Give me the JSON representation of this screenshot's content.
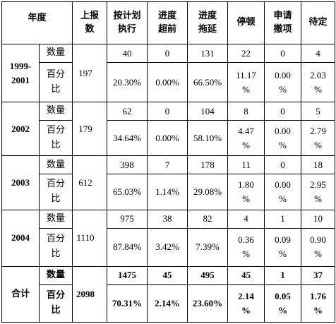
{
  "headers": {
    "year": "年度",
    "reported": [
      "上报",
      "数"
    ],
    "on_plan": [
      "按计划",
      "执行"
    ],
    "ahead": [
      "进度",
      "超前"
    ],
    "delayed": [
      "进度",
      "拖延"
    ],
    "stopped": "停顿",
    "applied": [
      "申请",
      "撤项"
    ],
    "pending": "待定"
  },
  "labels": {
    "count": "数量",
    "percent": [
      "百分",
      "比"
    ]
  },
  "rows": [
    {
      "year": [
        "1999-",
        "2001"
      ],
      "reported": "197",
      "count": [
        "40",
        "0",
        "131",
        "22",
        "0",
        "4"
      ],
      "percent": [
        "20.30%",
        "0.00%",
        "66.50%",
        [
          "11.17",
          "%"
        ],
        [
          "0.00",
          "%"
        ],
        [
          "2.03",
          "%"
        ]
      ]
    },
    {
      "year": [
        "2002"
      ],
      "reported": "179",
      "count": [
        "62",
        "0",
        "104",
        "8",
        "0",
        "5"
      ],
      "percent": [
        "34.64%",
        "0.00%",
        "58.10%",
        [
          "4.47",
          "%"
        ],
        [
          "0.00",
          "%"
        ],
        [
          "2.79",
          "%"
        ]
      ]
    },
    {
      "year": [
        "2003"
      ],
      "reported": "612",
      "count": [
        "398",
        "7",
        "178",
        "11",
        "0",
        "18"
      ],
      "percent": [
        "65.03%",
        "1.14%",
        "29.08%",
        [
          "1.80",
          "%"
        ],
        [
          "0.00",
          "%"
        ],
        [
          "2.95",
          "%"
        ]
      ]
    },
    {
      "year": [
        "2004"
      ],
      "reported": "1110",
      "count": [
        "975",
        "38",
        "82",
        "4",
        "1",
        "10"
      ],
      "percent": [
        "87.84%",
        "3.42%",
        "7.39%",
        [
          "0.36",
          "%"
        ],
        [
          "0.09",
          "%"
        ],
        [
          "0.90",
          "%"
        ]
      ]
    }
  ],
  "total": {
    "label": "合计",
    "reported": "2098",
    "count": [
      "1475",
      "45",
      "495",
      "45",
      "1",
      "37"
    ],
    "percent": [
      "70.31%",
      "2.14%",
      "23.60%",
      [
        "2.14",
        "%"
      ],
      [
        "0.05",
        "%"
      ],
      [
        "1.76",
        "%"
      ]
    ]
  }
}
